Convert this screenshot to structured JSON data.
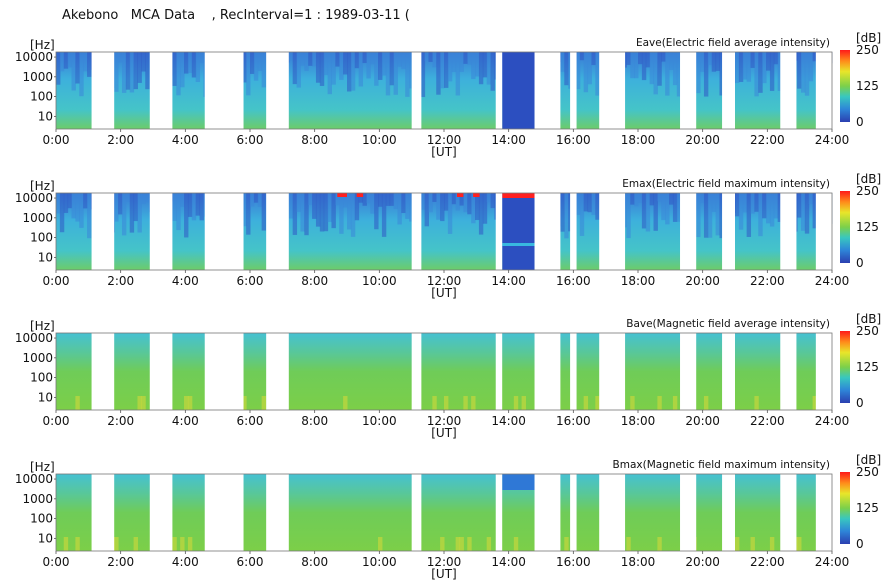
{
  "header": {
    "title": "Akebono   MCA Data    , RecInterval=1 : 1989-03-11 ("
  },
  "chart_data": {
    "type": "heatmap",
    "shared": {
      "xlabel": "[UT]",
      "ylabel": "[Hz]",
      "x_ticks": [
        "0:00",
        "2:00",
        "4:00",
        "6:00",
        "8:00",
        "10:00",
        "12:00",
        "14:00",
        "16:00",
        "18:00",
        "20:00",
        "22:00",
        "24:00"
      ],
      "y_ticks": [
        "10000",
        "1000",
        "100",
        "10"
      ],
      "y_tick_values": [
        10000,
        1000,
        100,
        10
      ],
      "y_scale": "log",
      "xlim_hours": [
        0,
        24
      ],
      "colorbar": {
        "label": "[dB]",
        "ticks": [
          "250",
          "125",
          "0"
        ],
        "range": [
          0,
          250
        ],
        "colors": [
          "#ff1a1a",
          "#ff8a1a",
          "#e8e62a",
          "#7cd04a",
          "#38c7c0",
          "#2e86d8",
          "#2b3fb0"
        ]
      },
      "data_gaps_hours": [
        [
          1.1,
          1.8
        ],
        [
          2.9,
          3.6
        ],
        [
          4.6,
          5.8
        ],
        [
          6.5,
          7.2
        ],
        [
          11.0,
          11.3
        ],
        [
          13.6,
          13.8
        ],
        [
          14.8,
          15.6
        ],
        [
          15.9,
          16.1
        ],
        [
          16.8,
          17.6
        ],
        [
          19.3,
          19.8
        ],
        [
          20.6,
          21.0
        ],
        [
          22.4,
          22.9
        ],
        [
          23.5,
          24.0
        ]
      ]
    },
    "panels": [
      {
        "title": "Eave(Electric field average intensity)",
        "variant": "E-ave"
      },
      {
        "title": "Emax(Electric field maximum intensity)",
        "variant": "E-max"
      },
      {
        "title": "Bave(Magnetic field average intensity)",
        "variant": "B-ave"
      },
      {
        "title": "Bmax(Magnetic field maximum intensity)",
        "variant": "B-max"
      }
    ]
  }
}
